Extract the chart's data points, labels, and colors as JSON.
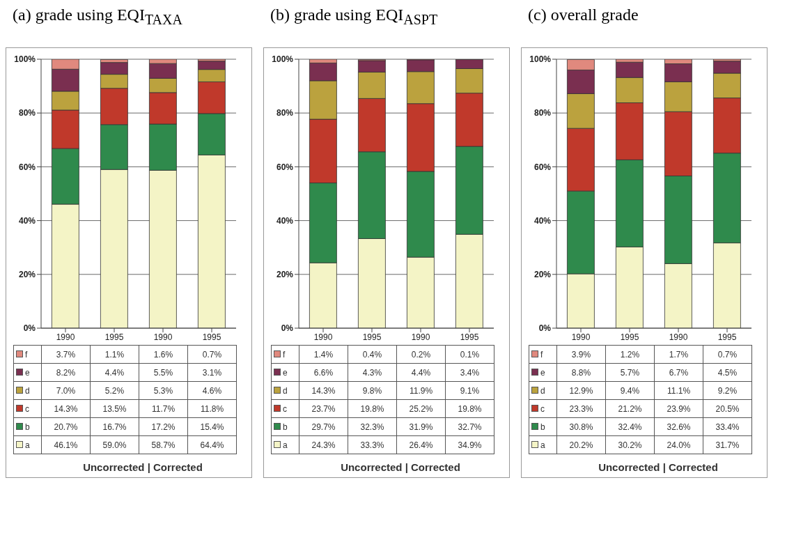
{
  "chart_data": [
    {
      "type": "bar",
      "legend": "bottom",
      "title": "(a) grade using EQI$_{TAXA}$",
      "xlabel": "Uncorrected | Corrected",
      "categories": [
        "1990",
        "1995",
        "1990",
        "1995"
      ],
      "stacked": true,
      "grid": "y",
      "ylim": [
        0,
        100
      ],
      "yticks": [
        {
          "value": 0,
          "label": "0%"
        },
        {
          "value": 20,
          "label": "20%"
        },
        {
          "value": 40,
          "label": "40%"
        },
        {
          "value": 60,
          "label": "60%"
        },
        {
          "value": 80,
          "label": "80%"
        },
        {
          "value": 100,
          "label": "100%"
        }
      ],
      "series": [
        {
          "name": "a",
          "color": "#f4f4c6",
          "values": [
            46.1,
            59.0,
            58.7,
            64.4
          ],
          "value_labels": [
            "46.1%",
            "59.0%",
            "58.7%",
            "64.4%"
          ]
        },
        {
          "name": "b",
          "color": "#2f8a4c",
          "values": [
            20.7,
            16.7,
            17.2,
            15.4
          ],
          "value_labels": [
            "20.7%",
            "16.7%",
            "17.2%",
            "15.4%"
          ]
        },
        {
          "name": "c",
          "color": "#c0392b",
          "values": [
            14.3,
            13.5,
            11.7,
            11.8
          ],
          "value_labels": [
            "14.3%",
            "13.5%",
            "11.7%",
            "11.8%"
          ]
        },
        {
          "name": "d",
          "color": "#bba23e",
          "values": [
            7.0,
            5.2,
            5.3,
            4.6
          ],
          "value_labels": [
            "7.0%",
            "5.2%",
            "5.3%",
            "4.6%"
          ]
        },
        {
          "name": "e",
          "color": "#7a2f50",
          "values": [
            8.2,
            4.4,
            5.5,
            3.1
          ],
          "value_labels": [
            "8.2%",
            "4.4%",
            "5.5%",
            "3.1%"
          ]
        },
        {
          "name": "f",
          "color": "#e0897e",
          "values": [
            3.7,
            1.1,
            1.6,
            0.7
          ],
          "value_labels": [
            "3.7%",
            "1.1%",
            "1.6%",
            "0.7%"
          ]
        }
      ]
    },
    {
      "type": "bar",
      "legend": "bottom",
      "title": "(b) grade using EQI$_{ASPT}$",
      "xlabel": "Uncorrected | Corrected",
      "categories": [
        "1990",
        "1995",
        "1990",
        "1995"
      ],
      "stacked": true,
      "grid": "y",
      "ylim": [
        0,
        100
      ],
      "yticks": [
        {
          "value": 0,
          "label": "0%"
        },
        {
          "value": 20,
          "label": "20%"
        },
        {
          "value": 40,
          "label": "40%"
        },
        {
          "value": 60,
          "label": "60%"
        },
        {
          "value": 80,
          "label": "80%"
        },
        {
          "value": 100,
          "label": "100%"
        }
      ],
      "series": [
        {
          "name": "a",
          "color": "#f4f4c6",
          "values": [
            24.3,
            33.3,
            26.4,
            34.9
          ],
          "value_labels": [
            "24.3%",
            "33.3%",
            "26.4%",
            "34.9%"
          ]
        },
        {
          "name": "b",
          "color": "#2f8a4c",
          "values": [
            29.7,
            32.3,
            31.9,
            32.7
          ],
          "value_labels": [
            "29.7%",
            "32.3%",
            "31.9%",
            "32.7%"
          ]
        },
        {
          "name": "c",
          "color": "#c0392b",
          "values": [
            23.7,
            19.8,
            25.2,
            19.8
          ],
          "value_labels": [
            "23.7%",
            "19.8%",
            "25.2%",
            "19.8%"
          ]
        },
        {
          "name": "d",
          "color": "#bba23e",
          "values": [
            14.3,
            9.8,
            11.9,
            9.1
          ],
          "value_labels": [
            "14.3%",
            "9.8%",
            "11.9%",
            "9.1%"
          ]
        },
        {
          "name": "e",
          "color": "#7a2f50",
          "values": [
            6.6,
            4.3,
            4.4,
            3.4
          ],
          "value_labels": [
            "6.6%",
            "4.3%",
            "4.4%",
            "3.4%"
          ]
        },
        {
          "name": "f",
          "color": "#e0897e",
          "values": [
            1.4,
            0.4,
            0.2,
            0.1
          ],
          "value_labels": [
            "1.4%",
            "0.4%",
            "0.2%",
            "0.1%"
          ]
        }
      ]
    },
    {
      "type": "bar",
      "legend": "bottom",
      "title": "(c) overall grade",
      "xlabel": "Uncorrected | Corrected",
      "categories": [
        "1990",
        "1995",
        "1990",
        "1995"
      ],
      "stacked": true,
      "grid": "y",
      "ylim": [
        0,
        100
      ],
      "yticks": [
        {
          "value": 0,
          "label": "0%"
        },
        {
          "value": 20,
          "label": "20%"
        },
        {
          "value": 40,
          "label": "40%"
        },
        {
          "value": 60,
          "label": "60%"
        },
        {
          "value": 80,
          "label": "80%"
        },
        {
          "value": 100,
          "label": "100%"
        }
      ],
      "series": [
        {
          "name": "a",
          "color": "#f4f4c6",
          "values": [
            20.2,
            30.2,
            24.0,
            31.7
          ],
          "value_labels": [
            "20.2%",
            "30.2%",
            "24.0%",
            "31.7%"
          ]
        },
        {
          "name": "b",
          "color": "#2f8a4c",
          "values": [
            30.8,
            32.4,
            32.6,
            33.4
          ],
          "value_labels": [
            "30.8%",
            "32.4%",
            "32.6%",
            "33.4%"
          ]
        },
        {
          "name": "c",
          "color": "#c0392b",
          "values": [
            23.3,
            21.2,
            23.9,
            20.5
          ],
          "value_labels": [
            "23.3%",
            "21.2%",
            "23.9%",
            "20.5%"
          ]
        },
        {
          "name": "d",
          "color": "#bba23e",
          "values": [
            12.9,
            9.4,
            11.1,
            9.2
          ],
          "value_labels": [
            "12.9%",
            "9.4%",
            "11.1%",
            "9.2%"
          ]
        },
        {
          "name": "e",
          "color": "#7a2f50",
          "values": [
            8.8,
            5.7,
            6.7,
            4.5
          ],
          "value_labels": [
            "8.8%",
            "5.7%",
            "6.7%",
            "4.5%"
          ]
        },
        {
          "name": "f",
          "color": "#e0897e",
          "values": [
            3.9,
            1.2,
            1.7,
            0.7
          ],
          "value_labels": [
            "3.9%",
            "1.2%",
            "1.7%",
            "0.7%"
          ]
        }
      ]
    }
  ]
}
